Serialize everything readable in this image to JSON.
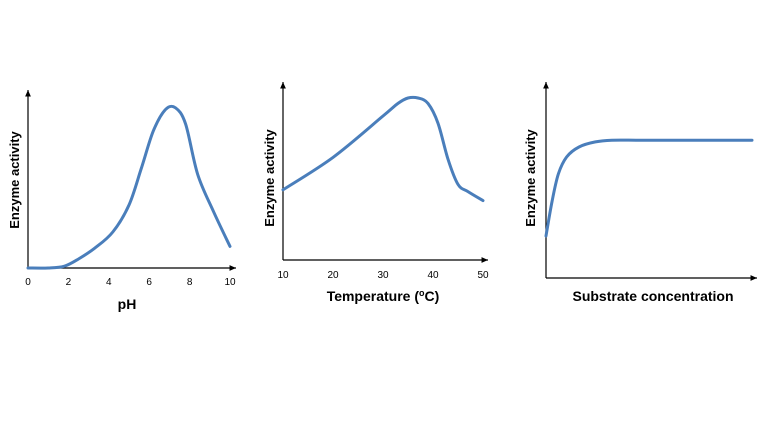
{
  "chart_data": [
    {
      "type": "line",
      "title": "",
      "xlabel": "pH",
      "ylabel": "Enzyme activity",
      "xlim": [
        0,
        10
      ],
      "ylim": [
        0,
        100
      ],
      "xticks": [
        "0",
        "2",
        "4",
        "6",
        "8",
        "10"
      ],
      "yticks": [],
      "grid": false,
      "series": [
        {
          "name": "activity",
          "color": "#4a7ebb",
          "x": [
            0,
            1,
            1.8,
            2.5,
            3.3,
            4.2,
            5.0,
            5.6,
            6.2,
            6.8,
            7.3,
            7.8,
            8.4,
            9.2,
            10
          ],
          "y": [
            0,
            0,
            1,
            5,
            11,
            20,
            35,
            55,
            76,
            88,
            89,
            80,
            52,
            31,
            12
          ]
        }
      ]
    },
    {
      "type": "line",
      "title": "",
      "xlabel": "Temperature (oC)",
      "ylabel": "Enzyme activity",
      "xlim": [
        10,
        50
      ],
      "ylim": [
        0,
        100
      ],
      "xticks": [
        "10",
        "20",
        "30",
        "40",
        "50"
      ],
      "yticks": [],
      "grid": false,
      "series": [
        {
          "name": "activity",
          "color": "#4a7ebb",
          "x": [
            10,
            20,
            30,
            33,
            35,
            37,
            39,
            41,
            43,
            45,
            47,
            50
          ],
          "y": [
            39,
            57,
            80,
            87,
            90,
            90,
            87,
            76,
            56,
            42,
            38,
            33
          ]
        }
      ]
    },
    {
      "type": "line",
      "title": "",
      "xlabel": "Substrate concentration",
      "ylabel": "Enzyme activity",
      "xlim": [
        0,
        100
      ],
      "ylim": [
        0,
        100
      ],
      "xticks": [],
      "yticks": [],
      "grid": false,
      "series": [
        {
          "name": "activity",
          "color": "#4a7ebb",
          "x": [
            0,
            3,
            6,
            10,
            16,
            24,
            32,
            45,
            60,
            80,
            100
          ],
          "y": [
            25,
            46,
            62,
            72,
            78,
            81,
            82,
            82,
            82,
            82,
            82
          ]
        }
      ]
    }
  ]
}
